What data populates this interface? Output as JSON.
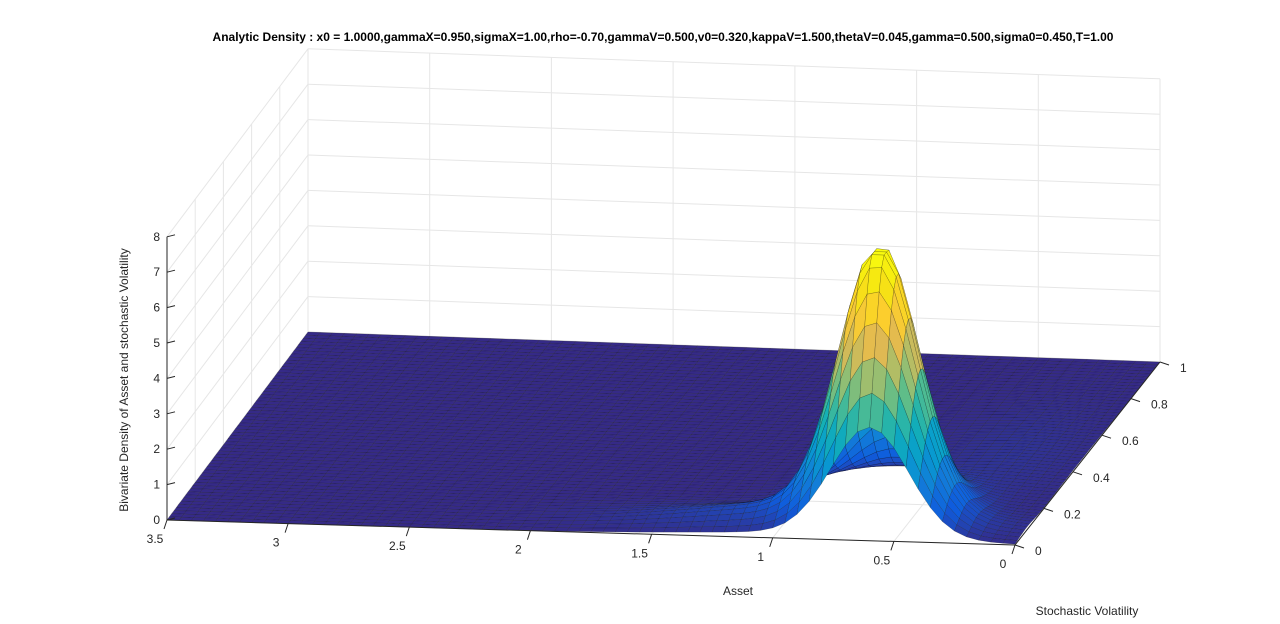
{
  "chart_data": {
    "type": "surface",
    "title": "Analytic Density : x0 = 1.0000,gammaX=0.950,sigmaX=1.00,rho=-0.70,gammaV=0.500,v0=0.320,kappaV=1.500,thetaV=0.045,gamma=0.500,sigma0=0.450,T=1.00",
    "xlabel": "Asset",
    "ylabel": "Stochastic Volatility",
    "zlabel": "Bivariate Density of Asset and stochastic Volatility",
    "xlim": [
      0,
      3.5
    ],
    "ylim": [
      0,
      1
    ],
    "zlim": [
      0,
      8
    ],
    "x_ticks": [
      "0",
      "0.5",
      "1",
      "1.5",
      "2",
      "2.5",
      "3",
      "3.5"
    ],
    "y_ticks": [
      "0",
      "0.2",
      "0.4",
      "0.6",
      "0.8",
      "1"
    ],
    "z_ticks": [
      "0",
      "1",
      "2",
      "3",
      "4",
      "5",
      "6",
      "7",
      "8"
    ],
    "colormap": "parula",
    "grid": true,
    "peak": {
      "asset": 0.6,
      "volatility": 0.12,
      "density": 7.5
    }
  }
}
